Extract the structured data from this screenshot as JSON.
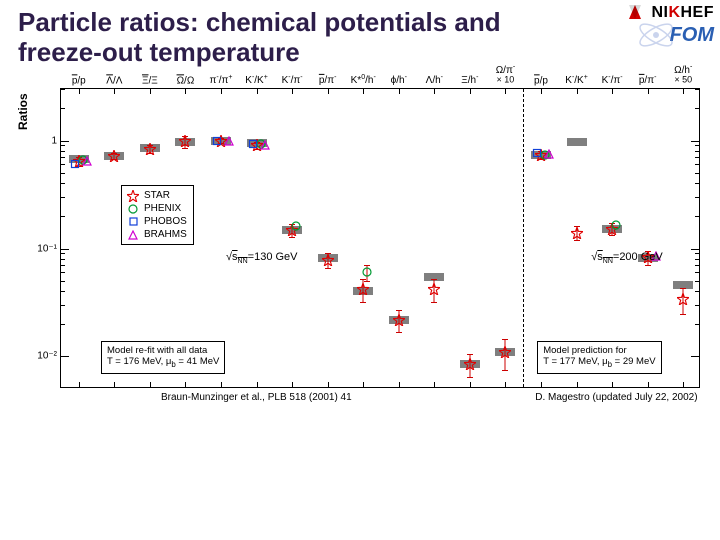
{
  "title": "Particle ratios: chemical potentials and freeze-out temperature",
  "logos": {
    "nikhef_pre": "NI",
    "nikhef_k": "K",
    "nikhef_post": "HEF",
    "fom": "FOM"
  },
  "colors": {
    "title": "#2d1e4a",
    "star": "#e00000",
    "phenix": "#009933",
    "phobos": "#1040d8",
    "brahms": "#d000d0",
    "bar": "#000000",
    "axis": "#000000"
  },
  "plot": {
    "type": "scatter",
    "y_axis": {
      "label": "Ratios",
      "scale": "log",
      "min": 0.005,
      "max": 3.0
    },
    "y_ticks": [
      {
        "value": 1,
        "label": "1"
      },
      {
        "value": 0.1,
        "label": "10⁻¹"
      },
      {
        "value": 0.01,
        "label": "10⁻²"
      }
    ],
    "x_labels": [
      "p̄/p",
      "Λ̄/Λ",
      "Ξ̄/Ξ",
      "Ω̄/Ω",
      "π⁻/π⁺",
      "K⁻/K⁺",
      "K⁻/π⁻",
      "p̄/π⁻",
      "K*⁰/h⁻",
      "ϕ/h⁻",
      "Λ/h⁻",
      "Ξ/h⁻",
      "Ω/π⁻\n× 10",
      "p̄/p",
      "K⁻/K⁺",
      "K⁻/π⁻",
      "p̄/π⁻",
      "Ω/h⁻\n× 50"
    ],
    "divider_after_index": 12,
    "left_mult": "× 10",
    "right_mult": "× 50",
    "bars": [
      {
        "x": 0,
        "y": 0.68,
        "w": 0.015
      },
      {
        "x": 1,
        "y": 0.72,
        "w": 0.015
      },
      {
        "x": 2,
        "y": 0.85,
        "w": 0.02
      },
      {
        "x": 3,
        "y": 0.97,
        "w": 0.04
      },
      {
        "x": 4,
        "y": 1.0,
        "w": 0.015
      },
      {
        "x": 5,
        "y": 0.95,
        "w": 0.02
      },
      {
        "x": 6,
        "y": 0.147,
        "w": 0.012
      },
      {
        "x": 7,
        "y": 0.082,
        "w": 0.01
      },
      {
        "x": 8,
        "y": 0.04,
        "w": 0.01
      },
      {
        "x": 9,
        "y": 0.022,
        "w": 0.006
      },
      {
        "x": 10,
        "y": 0.055,
        "w": 0.008
      },
      {
        "x": 11,
        "y": 0.0085,
        "w": 0.002
      },
      {
        "x": 12,
        "y": 0.011,
        "w": 0.0035
      },
      {
        "x": 13,
        "y": 0.73,
        "w": 0.015
      },
      {
        "x": 14,
        "y": 0.96,
        "w": 0.02
      },
      {
        "x": 15,
        "y": 0.152,
        "w": 0.012
      },
      {
        "x": 16,
        "y": 0.082,
        "w": 0.01
      },
      {
        "x": 17,
        "y": 0.046,
        "w": 0.012
      }
    ],
    "points": [
      {
        "x": 0,
        "y": 0.64,
        "shape": "star",
        "err": 0.06
      },
      {
        "x": 0,
        "y": 0.66,
        "shape": "circle",
        "err": 0
      },
      {
        "x": 0,
        "y": 0.6,
        "shape": "square",
        "err": 0
      },
      {
        "x": 0,
        "y": 0.65,
        "shape": "triangle",
        "err": 0
      },
      {
        "x": 1,
        "y": 0.72,
        "shape": "star",
        "err": 0.05
      },
      {
        "x": 2,
        "y": 0.84,
        "shape": "star",
        "err": 0.07
      },
      {
        "x": 3,
        "y": 0.98,
        "shape": "star",
        "err": 0.12
      },
      {
        "x": 4,
        "y": 1.0,
        "shape": "star",
        "err": 0.05
      },
      {
        "x": 4,
        "y": 1.0,
        "shape": "square",
        "err": 0
      },
      {
        "x": 4,
        "y": 0.98,
        "shape": "triangle",
        "err": 0
      },
      {
        "x": 5,
        "y": 0.9,
        "shape": "star",
        "err": 0.06
      },
      {
        "x": 5,
        "y": 0.92,
        "shape": "circle",
        "err": 0
      },
      {
        "x": 5,
        "y": 0.93,
        "shape": "square",
        "err": 0
      },
      {
        "x": 5,
        "y": 0.91,
        "shape": "triangle",
        "err": 0
      },
      {
        "x": 6,
        "y": 0.147,
        "shape": "star",
        "err": 0.02
      },
      {
        "x": 6,
        "y": 0.16,
        "shape": "circle",
        "err": 0
      },
      {
        "x": 7,
        "y": 0.078,
        "shape": "star",
        "err": 0.012
      },
      {
        "x": 8,
        "y": 0.042,
        "shape": "star",
        "err": 0.01
      },
      {
        "x": 8,
        "y": 0.06,
        "shape": "circle",
        "err": 0.01
      },
      {
        "x": 9,
        "y": 0.022,
        "shape": "star",
        "err": 0.005
      },
      {
        "x": 10,
        "y": 0.042,
        "shape": "star",
        "err": 0.01
      },
      {
        "x": 11,
        "y": 0.0085,
        "shape": "star",
        "err": 0.002
      },
      {
        "x": 12,
        "y": 0.011,
        "shape": "star",
        "err": 0.0035
      },
      {
        "x": 13,
        "y": 0.74,
        "shape": "star",
        "err": 0.06
      },
      {
        "x": 13,
        "y": 0.73,
        "shape": "circle",
        "err": 0
      },
      {
        "x": 13,
        "y": 0.77,
        "shape": "square",
        "err": 0
      },
      {
        "x": 13,
        "y": 0.75,
        "shape": "triangle",
        "err": 0
      },
      {
        "x": 14,
        "y": 0.14,
        "shape": "star",
        "err": 0.02
      },
      {
        "x": 15,
        "y": 0.152,
        "shape": "star",
        "err": 0.02
      },
      {
        "x": 15,
        "y": 0.165,
        "shape": "circle",
        "err": 0
      },
      {
        "x": 16,
        "y": 0.083,
        "shape": "star",
        "err": 0.012
      },
      {
        "x": 16,
        "y": 0.085,
        "shape": "triangle",
        "err": 0
      },
      {
        "x": 17,
        "y": 0.034,
        "shape": "star",
        "err": 0.009
      }
    ]
  },
  "legend": {
    "items": [
      {
        "shape": "star",
        "color": "#e00000",
        "label": "STAR"
      },
      {
        "shape": "circle",
        "color": "#009933",
        "label": "PHENIX"
      },
      {
        "shape": "square",
        "color": "#1040d8",
        "label": "PHOBOS"
      },
      {
        "shape": "triangle",
        "color": "#d000d0",
        "label": "BRAHMS"
      }
    ]
  },
  "energy_left": "√sₙₙ=130 GeV",
  "energy_right": "√sₙₙ=200 GeV",
  "box_left": {
    "line1": "Model re-fit with all data",
    "line2": "T = 176 MeV,   μb = 41 MeV"
  },
  "box_right": {
    "line1": "Model prediction for",
    "line2": "T = 177 MeV,   μb = 29 MeV"
  },
  "caption_left": "Braun-Munzinger et al., PLB 518 (2001) 41",
  "caption_right": "D. Magestro (updated July 22, 2002)"
}
